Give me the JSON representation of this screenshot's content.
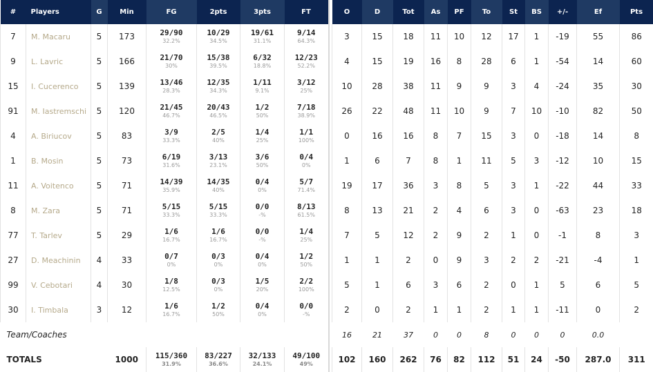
{
  "headers": {
    "num": "#",
    "player": "Players",
    "g": "G",
    "min": "Min",
    "fg": "FG",
    "p2": "2pts",
    "p3": "3pts",
    "ft": "FT",
    "o": "O",
    "d": "D",
    "tot": "Tot",
    "as": "As",
    "pf": "PF",
    "to": "To",
    "st": "St",
    "bs": "BS",
    "pm": "+/-",
    "ef": "Ef",
    "pts": "Pts"
  },
  "players": [
    {
      "num": "7",
      "name": "M. Macaru",
      "g": "5",
      "min": "173",
      "fg": "29/90",
      "fgp": "32.2%",
      "p2": "10/29",
      "p2p": "34.5%",
      "p3": "19/61",
      "p3p": "31.1%",
      "ft": "9/14",
      "ftp": "64.3%",
      "o": "3",
      "d": "15",
      "tot": "18",
      "as": "11",
      "pf": "10",
      "to": "12",
      "st": "17",
      "bs": "1",
      "pm": "-19",
      "ef": "55",
      "pts": "86"
    },
    {
      "num": "9",
      "name": "L. Lavric",
      "g": "5",
      "min": "166",
      "fg": "21/70",
      "fgp": "30%",
      "p2": "15/38",
      "p2p": "39.5%",
      "p3": "6/32",
      "p3p": "18.8%",
      "ft": "12/23",
      "ftp": "52.2%",
      "o": "4",
      "d": "15",
      "tot": "19",
      "as": "16",
      "pf": "8",
      "to": "28",
      "st": "6",
      "bs": "1",
      "pm": "-54",
      "ef": "14",
      "pts": "60"
    },
    {
      "num": "15",
      "name": "I. Cucerenco",
      "g": "5",
      "min": "139",
      "fg": "13/46",
      "fgp": "28.3%",
      "p2": "12/35",
      "p2p": "34.3%",
      "p3": "1/11",
      "p3p": "9.1%",
      "ft": "3/12",
      "ftp": "25%",
      "o": "10",
      "d": "28",
      "tot": "38",
      "as": "11",
      "pf": "9",
      "to": "9",
      "st": "3",
      "bs": "4",
      "pm": "-24",
      "ef": "35",
      "pts": "30"
    },
    {
      "num": "91",
      "name": "M. Iastremschi",
      "g": "5",
      "min": "120",
      "fg": "21/45",
      "fgp": "46.7%",
      "p2": "20/43",
      "p2p": "46.5%",
      "p3": "1/2",
      "p3p": "50%",
      "ft": "7/18",
      "ftp": "38.9%",
      "o": "26",
      "d": "22",
      "tot": "48",
      "as": "11",
      "pf": "10",
      "to": "9",
      "st": "7",
      "bs": "10",
      "pm": "-10",
      "ef": "82",
      "pts": "50"
    },
    {
      "num": "4",
      "name": "A. Biriucov",
      "g": "5",
      "min": "83",
      "fg": "3/9",
      "fgp": "33.3%",
      "p2": "2/5",
      "p2p": "40%",
      "p3": "1/4",
      "p3p": "25%",
      "ft": "1/1",
      "ftp": "100%",
      "o": "0",
      "d": "16",
      "tot": "16",
      "as": "8",
      "pf": "7",
      "to": "15",
      "st": "3",
      "bs": "0",
      "pm": "-18",
      "ef": "14",
      "pts": "8"
    },
    {
      "num": "1",
      "name": "B. Mosin",
      "g": "5",
      "min": "73",
      "fg": "6/19",
      "fgp": "31.6%",
      "p2": "3/13",
      "p2p": "23.1%",
      "p3": "3/6",
      "p3p": "50%",
      "ft": "0/4",
      "ftp": "0%",
      "o": "1",
      "d": "6",
      "tot": "7",
      "as": "8",
      "pf": "1",
      "to": "11",
      "st": "5",
      "bs": "3",
      "pm": "-12",
      "ef": "10",
      "pts": "15"
    },
    {
      "num": "11",
      "name": "A. Voitenco",
      "g": "5",
      "min": "71",
      "fg": "14/39",
      "fgp": "35.9%",
      "p2": "14/35",
      "p2p": "40%",
      "p3": "0/4",
      "p3p": "0%",
      "ft": "5/7",
      "ftp": "71.4%",
      "o": "19",
      "d": "17",
      "tot": "36",
      "as": "3",
      "pf": "8",
      "to": "5",
      "st": "3",
      "bs": "1",
      "pm": "-22",
      "ef": "44",
      "pts": "33"
    },
    {
      "num": "8",
      "name": "M. Zara",
      "g": "5",
      "min": "71",
      "fg": "5/15",
      "fgp": "33.3%",
      "p2": "5/15",
      "p2p": "33.3%",
      "p3": "0/0",
      "p3p": "-%",
      "ft": "8/13",
      "ftp": "61.5%",
      "o": "8",
      "d": "13",
      "tot": "21",
      "as": "2",
      "pf": "4",
      "to": "6",
      "st": "3",
      "bs": "0",
      "pm": "-63",
      "ef": "23",
      "pts": "18"
    },
    {
      "num": "77",
      "name": "T. Tarlev",
      "g": "5",
      "min": "29",
      "fg": "1/6",
      "fgp": "16.7%",
      "p2": "1/6",
      "p2p": "16.7%",
      "p3": "0/0",
      "p3p": "-%",
      "ft": "1/4",
      "ftp": "25%",
      "o": "7",
      "d": "5",
      "tot": "12",
      "as": "2",
      "pf": "9",
      "to": "2",
      "st": "1",
      "bs": "0",
      "pm": "-1",
      "ef": "8",
      "pts": "3"
    },
    {
      "num": "27",
      "name": "D. Meachinin",
      "g": "4",
      "min": "33",
      "fg": "0/7",
      "fgp": "0%",
      "p2": "0/3",
      "p2p": "0%",
      "p3": "0/4",
      "p3p": "0%",
      "ft": "1/2",
      "ftp": "50%",
      "o": "1",
      "d": "1",
      "tot": "2",
      "as": "0",
      "pf": "9",
      "to": "3",
      "st": "2",
      "bs": "2",
      "pm": "-21",
      "ef": "-4",
      "pts": "1"
    },
    {
      "num": "99",
      "name": "V. Cebotari",
      "g": "4",
      "min": "30",
      "fg": "1/8",
      "fgp": "12.5%",
      "p2": "0/3",
      "p2p": "0%",
      "p3": "1/5",
      "p3p": "20%",
      "ft": "2/2",
      "ftp": "100%",
      "o": "5",
      "d": "1",
      "tot": "6",
      "as": "3",
      "pf": "6",
      "to": "2",
      "st": "0",
      "bs": "1",
      "pm": "5",
      "ef": "6",
      "pts": "5"
    },
    {
      "num": "30",
      "name": "I. Timbala",
      "g": "3",
      "min": "12",
      "fg": "1/6",
      "fgp": "16.7%",
      "p2": "1/2",
      "p2p": "50%",
      "p3": "0/4",
      "p3p": "0%",
      "ft": "0/0",
      "ftp": "-%",
      "o": "2",
      "d": "0",
      "tot": "2",
      "as": "1",
      "pf": "1",
      "to": "2",
      "st": "1",
      "bs": "1",
      "pm": "-11",
      "ef": "0",
      "pts": "2"
    }
  ],
  "team": {
    "label": "Team/Coaches",
    "o": "16",
    "d": "21",
    "tot": "37",
    "as": "0",
    "pf": "0",
    "to": "8",
    "st": "0",
    "bs": "0",
    "pm": "0",
    "ef": "0.0"
  },
  "totals": {
    "label": "TOTALS",
    "min": "1000",
    "fg": "115/360",
    "fgp": "31.9%",
    "p2": "83/227",
    "p2p": "36.6%",
    "p3": "32/133",
    "p3p": "24.1%",
    "ft": "49/100",
    "ftp": "49%",
    "o": "102",
    "d": "160",
    "tot": "262",
    "as": "76",
    "pf": "82",
    "to": "112",
    "st": "51",
    "bs": "24",
    "pm": "-50",
    "ef": "287.0",
    "pts": "311"
  }
}
